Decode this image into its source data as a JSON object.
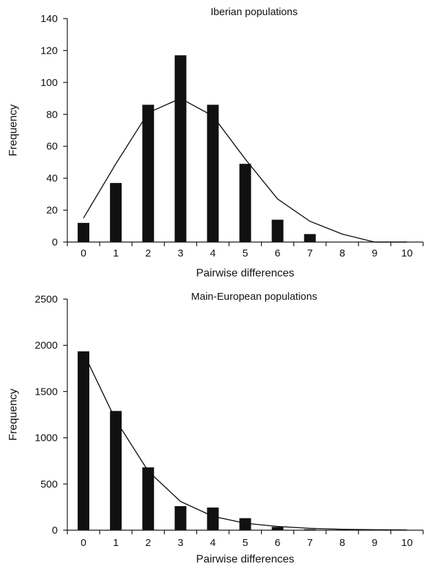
{
  "chart_data": [
    {
      "type": "bar",
      "title": "Iberian populations",
      "xlabel": "Pairwise differences",
      "ylabel": "Frequency",
      "categories": [
        "0",
        "1",
        "2",
        "3",
        "4",
        "5",
        "6",
        "7",
        "8",
        "9",
        "10"
      ],
      "ylim": [
        0,
        140
      ],
      "yticks": [
        0,
        20,
        40,
        60,
        80,
        100,
        120,
        140
      ],
      "series": [
        {
          "kind": "bar",
          "values": [
            12,
            37,
            86,
            117,
            86,
            49,
            14,
            5,
            0,
            0,
            0
          ]
        },
        {
          "kind": "line",
          "values": [
            15,
            49,
            81,
            90,
            79,
            52,
            27,
            13,
            5,
            0,
            0
          ]
        }
      ],
      "colors": {
        "bar": "#111111",
        "line": "#111111"
      }
    },
    {
      "type": "bar",
      "title": "Main-European populations",
      "xlabel": "Pairwise differences",
      "ylabel": "Frequency",
      "categories": [
        "0",
        "1",
        "2",
        "3",
        "4",
        "5",
        "6",
        "7",
        "8",
        "9",
        "10"
      ],
      "ylim": [
        0,
        2500
      ],
      "yticks": [
        0,
        500,
        1000,
        1500,
        2000,
        2500
      ],
      "series": [
        {
          "kind": "bar",
          "values": [
            1935,
            1290,
            680,
            260,
            245,
            130,
            35,
            10,
            5,
            0,
            0
          ]
        },
        {
          "kind": "line",
          "values": [
            1920,
            1190,
            640,
            310,
            150,
            75,
            40,
            20,
            10,
            5,
            3
          ]
        }
      ],
      "colors": {
        "bar": "#111111",
        "line": "#111111"
      }
    }
  ]
}
